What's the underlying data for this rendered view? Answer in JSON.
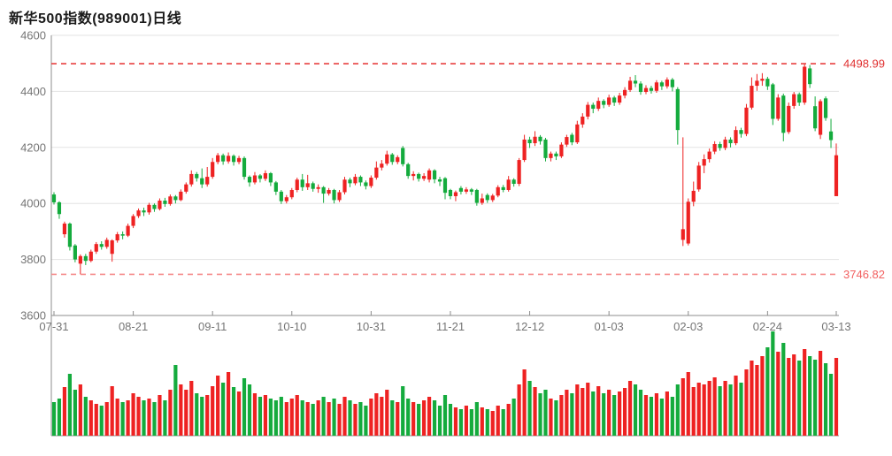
{
  "title": "新华500指数(989001)日线",
  "colors": {
    "up": "#ee2222",
    "down": "#14ab3d",
    "grid": "#e3e3e3",
    "axis": "#8c8c8c",
    "tick_text": "#757575",
    "high_line": "#e84040",
    "high_label": "#e03030",
    "low_line": "#f58a8a",
    "low_label": "#f26060",
    "title_text": "#1a1a1a"
  },
  "annotations": {
    "high": {
      "value": 4498.99,
      "label": "4498.99"
    },
    "low": {
      "value": 3746.82,
      "label": "3746.82"
    }
  },
  "chart_data": {
    "type": "candlestick+volume",
    "title": "新华500指数(989001)日线",
    "y_axis": {
      "min": 3600,
      "max": 4600,
      "tick_step": 200,
      "tick_labels": [
        "4600",
        "4400",
        "4200",
        "4000",
        "3800",
        "3600"
      ]
    },
    "x_ticks": [
      {
        "index": 0,
        "label": "07-31"
      },
      {
        "index": 15,
        "label": "08-21"
      },
      {
        "index": 30,
        "label": "09-11"
      },
      {
        "index": 45,
        "label": "10-10"
      },
      {
        "index": 60,
        "label": "10-31"
      },
      {
        "index": 75,
        "label": "11-21"
      },
      {
        "index": 90,
        "label": "12-12"
      },
      {
        "index": 105,
        "label": "01-03"
      },
      {
        "index": 120,
        "label": "02-03"
      },
      {
        "index": 135,
        "label": "02-24"
      },
      {
        "index": 148,
        "label": "03-13"
      }
    ],
    "period_high": 4498.99,
    "period_low": 3746.82,
    "candles_format": [
      "open",
      "close",
      "low",
      "high"
    ],
    "candles": [
      [
        4032,
        4004,
        3996,
        4040
      ],
      [
        4004,
        3962,
        3945,
        4008
      ],
      [
        3890,
        3928,
        3878,
        3935
      ],
      [
        3928,
        3845,
        3832,
        3932
      ],
      [
        3850,
        3800,
        3790,
        3855
      ],
      [
        3785,
        3812,
        3747,
        3818
      ],
      [
        3812,
        3795,
        3780,
        3820
      ],
      [
        3795,
        3828,
        3790,
        3835
      ],
      [
        3828,
        3855,
        3820,
        3862
      ],
      [
        3855,
        3845,
        3835,
        3865
      ],
      [
        3845,
        3870,
        3838,
        3878
      ],
      [
        3820,
        3868,
        3792,
        3872
      ],
      [
        3868,
        3890,
        3860,
        3898
      ],
      [
        3890,
        3885,
        3872,
        3900
      ],
      [
        3885,
        3920,
        3880,
        3928
      ],
      [
        3920,
        3955,
        3912,
        3962
      ],
      [
        3955,
        3975,
        3948,
        3982
      ],
      [
        3975,
        3968,
        3955,
        3985
      ],
      [
        3968,
        3995,
        3960,
        4002
      ],
      [
        3995,
        3980,
        3970,
        4000
      ],
      [
        3980,
        4010,
        3975,
        4018
      ],
      [
        4010,
        3998,
        3988,
        4020
      ],
      [
        3998,
        4025,
        3992,
        4032
      ],
      [
        4025,
        4012,
        4000,
        4030
      ],
      [
        4012,
        4042,
        4008,
        4050
      ],
      [
        4042,
        4068,
        4035,
        4075
      ],
      [
        4068,
        4105,
        4060,
        4118
      ],
      [
        4105,
        4090,
        4078,
        4112
      ],
      [
        4090,
        4068,
        4055,
        4125
      ],
      [
        4068,
        4095,
        4060,
        4130
      ],
      [
        4095,
        4148,
        4088,
        4162
      ],
      [
        4148,
        4172,
        4140,
        4180
      ],
      [
        4172,
        4150,
        4138,
        4178
      ],
      [
        4150,
        4170,
        4142,
        4182
      ],
      [
        4170,
        4148,
        4135,
        4175
      ],
      [
        4148,
        4162,
        4140,
        4170
      ],
      [
        4162,
        4095,
        4085,
        4168
      ],
      [
        4095,
        4075,
        4060,
        4100
      ],
      [
        4075,
        4100,
        4068,
        4112
      ],
      [
        4100,
        4088,
        4075,
        4105
      ],
      [
        4088,
        4108,
        4080,
        4118
      ],
      [
        4108,
        4075,
        4062,
        4112
      ],
      [
        4075,
        4042,
        4030,
        4080
      ],
      [
        4042,
        4008,
        3998,
        4048
      ],
      [
        4008,
        4022,
        4000,
        4030
      ],
      [
        4022,
        4048,
        4015,
        4055
      ],
      [
        4048,
        4085,
        4040,
        4092
      ],
      [
        4085,
        4058,
        4045,
        4105
      ],
      [
        4058,
        4072,
        4048,
        4102
      ],
      [
        4072,
        4052,
        4042,
        4078
      ],
      [
        4052,
        4058,
        4038,
        4068
      ],
      [
        4058,
        4035,
        4002,
        4062
      ],
      [
        4035,
        4048,
        4028,
        4055
      ],
      [
        4048,
        4012,
        4000,
        4052
      ],
      [
        4012,
        4040,
        4005,
        4048
      ],
      [
        4040,
        4085,
        4032,
        4095
      ],
      [
        4085,
        4072,
        4058,
        4092
      ],
      [
        4072,
        4095,
        4065,
        4105
      ],
      [
        4095,
        4075,
        4062,
        4100
      ],
      [
        4075,
        4062,
        4050,
        4082
      ],
      [
        4062,
        4092,
        4055,
        4100
      ],
      [
        4092,
        4128,
        4085,
        4150
      ],
      [
        4128,
        4142,
        4118,
        4155
      ],
      [
        4142,
        4175,
        4135,
        4188
      ],
      [
        4175,
        4148,
        4138,
        4180
      ],
      [
        4148,
        4165,
        4140,
        4172
      ],
      [
        4198,
        4140,
        4132,
        4205
      ],
      [
        4140,
        4098,
        4088,
        4145
      ],
      [
        4098,
        4105,
        4082,
        4115
      ],
      [
        4105,
        4088,
        4078,
        4110
      ],
      [
        4088,
        4098,
        4080,
        4108
      ],
      [
        4085,
        4118,
        4075,
        4125
      ],
      [
        4118,
        4086,
        4072,
        4122
      ],
      [
        4086,
        4078,
        4062,
        4095
      ],
      [
        4090,
        4038,
        4015,
        4094
      ],
      [
        4048,
        4026,
        4015,
        4052
      ],
      [
        4026,
        4040,
        4008,
        4046
      ],
      [
        4055,
        4042,
        4032,
        4062
      ],
      [
        4042,
        4050,
        4034,
        4058
      ],
      [
        4050,
        4042,
        4030,
        4055
      ],
      [
        4048,
        4002,
        3992,
        4052
      ],
      [
        4002,
        4018,
        3995,
        4035
      ],
      [
        4030,
        4012,
        4002,
        4036
      ],
      [
        4012,
        4028,
        4005,
        4034
      ],
      [
        4028,
        4058,
        4022,
        4065
      ],
      [
        4058,
        4048,
        4040,
        4066
      ],
      [
        4048,
        4085,
        4042,
        4098
      ],
      [
        4085,
        4070,
        4060,
        4090
      ],
      [
        4070,
        4155,
        4062,
        4162
      ],
      [
        4155,
        4228,
        4148,
        4245
      ],
      [
        4228,
        4215,
        4198,
        4238
      ],
      [
        4215,
        4238,
        4205,
        4258
      ],
      [
        4238,
        4222,
        4210,
        4244
      ],
      [
        4228,
        4162,
        4150,
        4234
      ],
      [
        4162,
        4178,
        4150,
        4185
      ],
      [
        4178,
        4168,
        4155,
        4185
      ],
      [
        4168,
        4210,
        4162,
        4218
      ],
      [
        4210,
        4237,
        4202,
        4245
      ],
      [
        4245,
        4218,
        4208,
        4252
      ],
      [
        4218,
        4282,
        4212,
        4295
      ],
      [
        4282,
        4310,
        4270,
        4322
      ],
      [
        4310,
        4352,
        4300,
        4362
      ],
      [
        4352,
        4338,
        4322,
        4360
      ],
      [
        4338,
        4366,
        4330,
        4378
      ],
      [
        4366,
        4352,
        4340,
        4372
      ],
      [
        4352,
        4378,
        4345,
        4388
      ],
      [
        4378,
        4360,
        4348,
        4384
      ],
      [
        4360,
        4385,
        4352,
        4395
      ],
      [
        4385,
        4405,
        4375,
        4415
      ],
      [
        4405,
        4438,
        4398,
        4452
      ],
      [
        4438,
        4428,
        4415,
        4458
      ],
      [
        4428,
        4398,
        4388,
        4436
      ],
      [
        4398,
        4412,
        4390,
        4422
      ],
      [
        4412,
        4402,
        4392,
        4420
      ],
      [
        4402,
        4432,
        4395,
        4440
      ],
      [
        4432,
        4418,
        4405,
        4438
      ],
      [
        4418,
        4442,
        4410,
        4450
      ],
      [
        4442,
        4415,
        4400,
        4448
      ],
      [
        4408,
        4262,
        4210,
        4415
      ],
      [
        3870,
        3908,
        3848,
        4236
      ],
      [
        3857,
        4006,
        3850,
        4018
      ],
      [
        4006,
        4045,
        3990,
        4078
      ],
      [
        4050,
        4135,
        4042,
        4148
      ],
      [
        4135,
        4158,
        4108,
        4175
      ],
      [
        4158,
        4185,
        4146,
        4196
      ],
      [
        4185,
        4212,
        4176,
        4222
      ],
      [
        4212,
        4198,
        4188,
        4220
      ],
      [
        4198,
        4228,
        4190,
        4238
      ],
      [
        4228,
        4215,
        4200,
        4236
      ],
      [
        4215,
        4262,
        4208,
        4275
      ],
      [
        4262,
        4248,
        4235,
        4270
      ],
      [
        4248,
        4342,
        4240,
        4355
      ],
      [
        4342,
        4420,
        4335,
        4450
      ],
      [
        4420,
        4438,
        4402,
        4462
      ],
      [
        4438,
        4445,
        4420,
        4465
      ],
      [
        4445,
        4418,
        4405,
        4452
      ],
      [
        4425,
        4302,
        4280,
        4430
      ],
      [
        4302,
        4378,
        4295,
        4390
      ],
      [
        4385,
        4252,
        4222,
        4392
      ],
      [
        4255,
        4348,
        4248,
        4360
      ],
      [
        4348,
        4390,
        4338,
        4398
      ],
      [
        4390,
        4360,
        4348,
        4396
      ],
      [
        4360,
        4488,
        4352,
        4499
      ],
      [
        4482,
        4426,
        4412,
        4494
      ],
      [
        4347,
        4268,
        4258,
        4382
      ],
      [
        4245,
        4365,
        4230,
        4372
      ],
      [
        4375,
        4305,
        4295,
        4382
      ],
      [
        4257,
        4226,
        4198,
        4302
      ],
      [
        4026,
        4172,
        4026,
        4214
      ]
    ],
    "volumes": [
      38,
      42,
      55,
      70,
      52,
      58,
      44,
      40,
      36,
      34,
      38,
      56,
      42,
      38,
      40,
      48,
      44,
      40,
      42,
      38,
      46,
      40,
      52,
      80,
      58,
      52,
      62,
      48,
      44,
      46,
      56,
      68,
      60,
      72,
      55,
      50,
      65,
      58,
      48,
      44,
      46,
      42,
      40,
      44,
      38,
      42,
      46,
      40,
      38,
      36,
      40,
      44,
      38,
      42,
      36,
      44,
      40,
      36,
      38,
      34,
      42,
      48,
      44,
      52,
      40,
      38,
      56,
      42,
      38,
      36,
      40,
      44,
      40,
      34,
      46,
      36,
      32,
      30,
      34,
      30,
      38,
      32,
      30,
      28,
      34,
      30,
      36,
      42,
      58,
      75,
      62,
      55,
      48,
      52,
      42,
      40,
      46,
      52,
      48,
      58,
      54,
      60,
      50,
      56,
      48,
      52,
      46,
      50,
      54,
      62,
      58,
      52,
      46,
      44,
      48,
      42,
      50,
      44,
      58,
      65,
      72,
      55,
      60,
      58,
      62,
      66,
      56,
      62,
      58,
      68,
      60,
      75,
      85,
      80,
      90,
      100,
      118,
      95,
      105,
      88,
      92,
      85,
      98,
      90,
      86,
      96,
      82,
      70,
      88
    ]
  }
}
